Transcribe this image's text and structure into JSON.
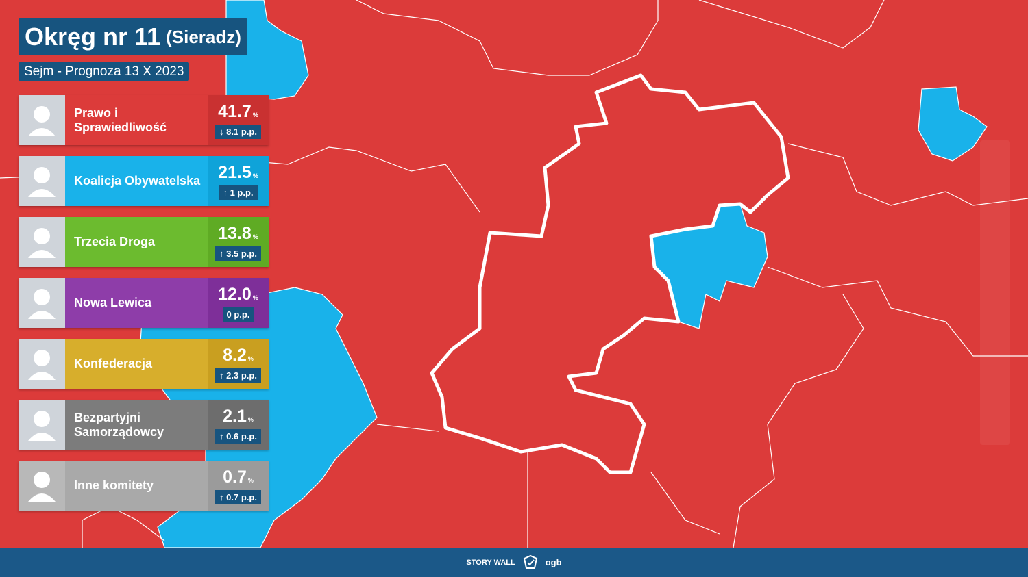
{
  "header": {
    "title": "Okręg nr 11",
    "district": "(Sieradz)",
    "subtitle": "Sejm - Prognoza 13 X 2023"
  },
  "unit": "%",
  "parties": [
    {
      "name": "Prawo i Sprawiedliwość",
      "value": "41.7",
      "change": "↓ 8.1 p.p.",
      "color": "#dc3b3a",
      "dark": "#c93131"
    },
    {
      "name": "Koalicja Obywatelska",
      "value": "21.5",
      "change": "↑ 1 p.p.",
      "color": "#19b2ea",
      "dark": "#0fa3d9"
    },
    {
      "name": "Trzecia Droga",
      "value": "13.8",
      "change": "↑ 3.5 p.p.",
      "color": "#6cbb2f",
      "dark": "#5fab24"
    },
    {
      "name": "Nowa Lewica",
      "value": "12.0",
      "change": "0 p.p.",
      "color": "#8e3da9",
      "dark": "#7e2f99"
    },
    {
      "name": "Konfederacja",
      "value": "8.2",
      "change": "↑ 2.3 p.p.",
      "color": "#d7ae2c",
      "dark": "#c99f20"
    },
    {
      "name": "Bezpartyjni Samorządowcy",
      "value": "2.1",
      "change": "↑ 0.6 p.p.",
      "color": "#7c7c7c",
      "dark": "#6d6d6d"
    },
    {
      "name": "Inne komitety",
      "value": "0.7",
      "change": "↑ 0.7 p.p.",
      "color": "#a9a9a9",
      "dark": "#9b9b9b"
    }
  ],
  "footer": {
    "brand": "STORY WALL",
    "logo": "ogb"
  }
}
